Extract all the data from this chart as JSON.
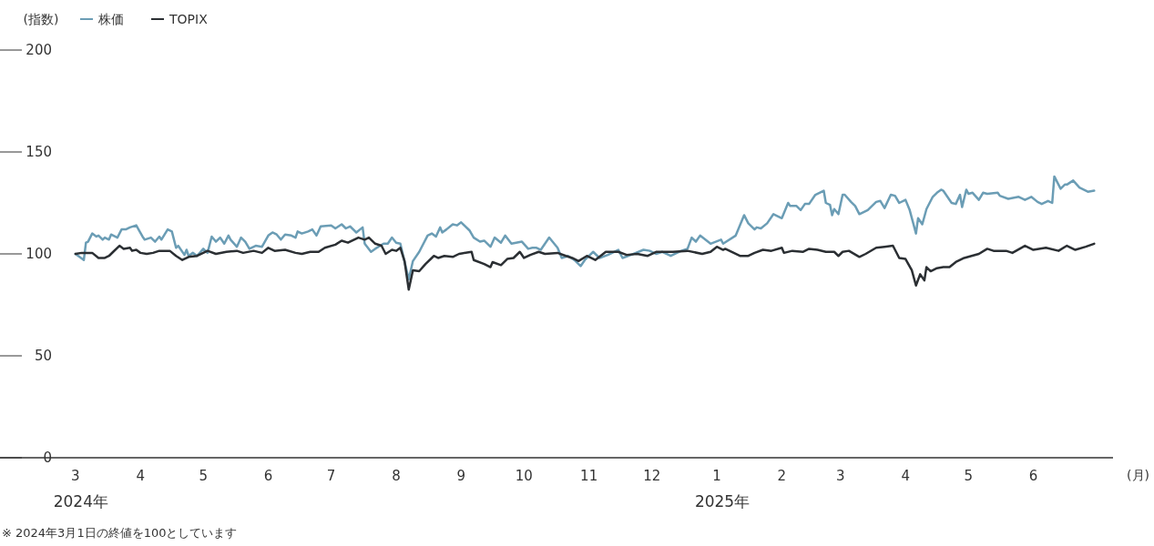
{
  "chart_data": {
    "type": "line",
    "ylabel": "(指数)",
    "xlabel": "(月)",
    "legend": "top left",
    "grid": false,
    "xlim": [
      "2024-01-25",
      "2025-07-09"
    ],
    "ylim": [
      0,
      200
    ],
    "yticks": [
      0,
      50,
      100,
      150,
      200
    ],
    "xticks": [
      {
        "value": "2024-03-01",
        "label": "3"
      },
      {
        "value": "2024-04-01",
        "label": "4"
      },
      {
        "value": "2024-05-01",
        "label": "5"
      },
      {
        "value": "2024-06-01",
        "label": "6"
      },
      {
        "value": "2024-07-01",
        "label": "7"
      },
      {
        "value": "2024-08-01",
        "label": "8"
      },
      {
        "value": "2024-09-01",
        "label": "9"
      },
      {
        "value": "2024-10-01",
        "label": "10"
      },
      {
        "value": "2024-11-01",
        "label": "11"
      },
      {
        "value": "2024-12-01",
        "label": "12"
      },
      {
        "value": "2025-01-01",
        "label": "1"
      },
      {
        "value": "2025-02-01",
        "label": "2"
      },
      {
        "value": "2025-03-01",
        "label": "3"
      },
      {
        "value": "2025-04-01",
        "label": "4"
      },
      {
        "value": "2025-05-01",
        "label": "5"
      },
      {
        "value": "2025-06-01",
        "label": "6"
      }
    ],
    "annotations": [
      "2024年",
      "2025年",
      "※ 2024年3月1日の終値を100としています"
    ],
    "series": [
      {
        "name": "株価",
        "color": "#6b9db5",
        "x": [
          "2024-03-01",
          "2024-03-05",
          "2024-03-06",
          "2024-03-07",
          "2024-03-09",
          "2024-03-11",
          "2024-03-12",
          "2024-03-14",
          "2024-03-15",
          "2024-03-17",
          "2024-03-18",
          "2024-03-21",
          "2024-03-23",
          "2024-03-25",
          "2024-03-27",
          "2024-03-30",
          "2024-04-02",
          "2024-04-03",
          "2024-04-06",
          "2024-04-08",
          "2024-04-10",
          "2024-04-11",
          "2024-04-14",
          "2024-04-16",
          "2024-04-18",
          "2024-04-19",
          "2024-04-22",
          "2024-04-23",
          "2024-04-24",
          "2024-04-26",
          "2024-04-28",
          "2024-05-01",
          "2024-05-03",
          "2024-05-05",
          "2024-05-07",
          "2024-05-09",
          "2024-05-11",
          "2024-05-13",
          "2024-05-14",
          "2024-05-17",
          "2024-05-19",
          "2024-05-21",
          "2024-05-23",
          "2024-05-26",
          "2024-05-29",
          "2024-06-01",
          "2024-06-03",
          "2024-06-05",
          "2024-06-07",
          "2024-06-09",
          "2024-06-12",
          "2024-06-14",
          "2024-06-15",
          "2024-06-17",
          "2024-06-20",
          "2024-06-22",
          "2024-06-24",
          "2024-06-26",
          "2024-07-01",
          "2024-07-03",
          "2024-07-06",
          "2024-07-08",
          "2024-07-10",
          "2024-07-13",
          "2024-07-16",
          "2024-07-17",
          "2024-07-20",
          "2024-07-22",
          "2024-07-26",
          "2024-07-28",
          "2024-07-30",
          "2024-08-01",
          "2024-08-03",
          "2024-08-04",
          "2024-08-07",
          "2024-08-09",
          "2024-08-12",
          "2024-08-16",
          "2024-08-18",
          "2024-08-20",
          "2024-08-22",
          "2024-08-23",
          "2024-08-25",
          "2024-08-28",
          "2024-08-30",
          "2024-09-01",
          "2024-09-05",
          "2024-09-07",
          "2024-09-10",
          "2024-09-12",
          "2024-09-15",
          "2024-09-17",
          "2024-09-20",
          "2024-09-22",
          "2024-09-25",
          "2024-09-30",
          "2024-10-03",
          "2024-10-05",
          "2024-10-07",
          "2024-10-09",
          "2024-10-13",
          "2024-10-17",
          "2024-10-19",
          "2024-10-22",
          "2024-10-25",
          "2024-10-28",
          "2024-10-30",
          "2024-11-03",
          "2024-11-06",
          "2024-11-10",
          "2024-11-15",
          "2024-11-17",
          "2024-11-21",
          "2024-11-27",
          "2024-11-30",
          "2024-12-03",
          "2024-12-06",
          "2024-12-10",
          "2024-12-15",
          "2024-12-18",
          "2024-12-20",
          "2024-12-22",
          "2024-12-24",
          "2024-12-29",
          "2025-01-03",
          "2025-01-04",
          "2025-01-10",
          "2025-01-14",
          "2025-01-16",
          "2025-01-19",
          "2025-01-20",
          "2025-01-22",
          "2025-01-25",
          "2025-01-28",
          "2025-02-01",
          "2025-02-04",
          "2025-02-05",
          "2025-02-08",
          "2025-02-10",
          "2025-02-12",
          "2025-02-14",
          "2025-02-17",
          "2025-02-21",
          "2025-02-22",
          "2025-02-24",
          "2025-02-25",
          "2025-02-26",
          "2025-02-28",
          "2025-03-02",
          "2025-03-03",
          "2025-03-06",
          "2025-03-08",
          "2025-03-10",
          "2025-03-14",
          "2025-03-18",
          "2025-03-20",
          "2025-03-22",
          "2025-03-25",
          "2025-03-27",
          "2025-03-29",
          "2025-04-01",
          "2025-04-03",
          "2025-04-06",
          "2025-04-07",
          "2025-04-09",
          "2025-04-11",
          "2025-04-14",
          "2025-04-16",
          "2025-04-18",
          "2025-04-19",
          "2025-04-23",
          "2025-04-25",
          "2025-04-27",
          "2025-04-28",
          "2025-04-30",
          "2025-05-01",
          "2025-05-03",
          "2025-05-06",
          "2025-05-08",
          "2025-05-10",
          "2025-05-15",
          "2025-05-16",
          "2025-05-20",
          "2025-05-25",
          "2025-05-28",
          "2025-05-31",
          "2025-06-03",
          "2025-06-05",
          "2025-06-08",
          "2025-06-10",
          "2025-06-11",
          "2025-06-14",
          "2025-06-16",
          "2025-06-17",
          "2025-06-20",
          "2025-06-23",
          "2025-06-27",
          "2025-06-30"
        ],
        "values": [
          100,
          97,
          105.5,
          106,
          110,
          108.5,
          109,
          107,
          108,
          107,
          109.5,
          108,
          112,
          112,
          113,
          114,
          108.5,
          107,
          108,
          106,
          108.5,
          107,
          112,
          111,
          103,
          104,
          99.5,
          102,
          99,
          100.5,
          99,
          102.5,
          100.5,
          108.5,
          106,
          108,
          105,
          109,
          107,
          103.5,
          108,
          106,
          102.5,
          104,
          103.5,
          109,
          110.5,
          109.5,
          107,
          109.5,
          109,
          108,
          111,
          110,
          111,
          112,
          109,
          113.5,
          114,
          112.5,
          114.5,
          112.5,
          113.5,
          110.5,
          113,
          105,
          101,
          102.5,
          105,
          105,
          108,
          105.5,
          105,
          100.5,
          87.5,
          96.5,
          101,
          109,
          110,
          108.5,
          113,
          110.5,
          112,
          114.5,
          114,
          115.5,
          111.5,
          108,
          106,
          106.5,
          103.5,
          108,
          105.5,
          109,
          105,
          106,
          102.5,
          103,
          103,
          102,
          108,
          103,
          98,
          99,
          97,
          94,
          97,
          101,
          98,
          99.5,
          102,
          98,
          99.5,
          102,
          101.5,
          100,
          101,
          99,
          101.5,
          102.5,
          108,
          106,
          109,
          105,
          107,
          105,
          109,
          119,
          115,
          112,
          113,
          112.5,
          115,
          119.5,
          117.5,
          125,
          123.5,
          123.5,
          121.5,
          124.5,
          124.5,
          129,
          131,
          125,
          124,
          119,
          122,
          119.5,
          129,
          129,
          125.5,
          123.5,
          119.5,
          121.5,
          125.5,
          126,
          122.5,
          129,
          128.5,
          125,
          126.5,
          121.5,
          110,
          117.5,
          114.5,
          122,
          128,
          130,
          131.5,
          131,
          125,
          124.5,
          129,
          123,
          131.5,
          129.5,
          130,
          126.5,
          130,
          129.5,
          130,
          128.5,
          127,
          128,
          126.5,
          128,
          125.5,
          124.5,
          126,
          125,
          138,
          132,
          134,
          134,
          136,
          132.5,
          130.5,
          131
        ]
      },
      {
        "name": "TOPIX",
        "color": "#2b2f33",
        "x": [
          "2024-03-01",
          "2024-03-04",
          "2024-03-09",
          "2024-03-12",
          "2024-03-15",
          "2024-03-17",
          "2024-03-19",
          "2024-03-22",
          "2024-03-24",
          "2024-03-27",
          "2024-03-28",
          "2024-03-30",
          "2024-04-01",
          "2024-04-04",
          "2024-04-07",
          "2024-04-10",
          "2024-04-15",
          "2024-04-18",
          "2024-04-21",
          "2024-04-24",
          "2024-04-28",
          "2024-05-03",
          "2024-05-07",
          "2024-05-12",
          "2024-05-17",
          "2024-05-20",
          "2024-05-25",
          "2024-05-29",
          "2024-06-01",
          "2024-06-04",
          "2024-06-09",
          "2024-06-14",
          "2024-06-17",
          "2024-06-21",
          "2024-06-25",
          "2024-06-28",
          "2024-07-03",
          "2024-07-06",
          "2024-07-09",
          "2024-07-14",
          "2024-07-17",
          "2024-07-19",
          "2024-07-22",
          "2024-07-25",
          "2024-07-27",
          "2024-07-30",
          "2024-08-01",
          "2024-08-03",
          "2024-08-05",
          "2024-08-07",
          "2024-08-09",
          "2024-08-12",
          "2024-08-15",
          "2024-08-19",
          "2024-08-21",
          "2024-08-24",
          "2024-08-28",
          "2024-08-31",
          "2024-09-06",
          "2024-09-07",
          "2024-09-12",
          "2024-09-15",
          "2024-09-16",
          "2024-09-20",
          "2024-09-23",
          "2024-09-26",
          "2024-09-29",
          "2024-10-01",
          "2024-10-04",
          "2024-10-08",
          "2024-10-11",
          "2024-10-17",
          "2024-10-21",
          "2024-10-24",
          "2024-10-27",
          "2024-10-31",
          "2024-11-04",
          "2024-11-09",
          "2024-11-15",
          "2024-11-19",
          "2024-11-24",
          "2024-11-29",
          "2024-12-03",
          "2024-12-11",
          "2024-12-18",
          "2024-12-25",
          "2024-12-29",
          "2025-01-01",
          "2025-01-04",
          "2025-01-05",
          "2025-01-12",
          "2025-01-16",
          "2025-01-19",
          "2025-01-23",
          "2025-01-27",
          "2025-02-01",
          "2025-02-02",
          "2025-02-06",
          "2025-02-11",
          "2025-02-14",
          "2025-02-18",
          "2025-02-22",
          "2025-02-26",
          "2025-02-28",
          "2025-03-02",
          "2025-03-05",
          "2025-03-10",
          "2025-03-13",
          "2025-03-18",
          "2025-03-22",
          "2025-03-26",
          "2025-03-29",
          "2025-04-01",
          "2025-04-04",
          "2025-04-06",
          "2025-04-08",
          "2025-04-10",
          "2025-04-11",
          "2025-04-13",
          "2025-04-16",
          "2025-04-19",
          "2025-04-22",
          "2025-04-25",
          "2025-04-29",
          "2025-05-06",
          "2025-05-10",
          "2025-05-13",
          "2025-05-19",
          "2025-05-22",
          "2025-05-28",
          "2025-06-01",
          "2025-06-07",
          "2025-06-13",
          "2025-06-17",
          "2025-06-21",
          "2025-06-26",
          "2025-06-30"
        ],
        "values": [
          100,
          100.5,
          100.5,
          98,
          98,
          99,
          101,
          104,
          102.5,
          103,
          101.5,
          102,
          100.5,
          100,
          100.5,
          101.5,
          101.5,
          99,
          97,
          98.5,
          99,
          101.5,
          100,
          101,
          101.5,
          100.5,
          101.5,
          100.5,
          103,
          101.5,
          102,
          100.5,
          100,
          101,
          101,
          103,
          104.5,
          106.5,
          105.5,
          108,
          107,
          108,
          105,
          104,
          100,
          102,
          101.5,
          103,
          96.5,
          82.5,
          92,
          91.5,
          95,
          99,
          98,
          99,
          98.5,
          100,
          101,
          97,
          95,
          93.5,
          96,
          94.5,
          97.5,
          98,
          101,
          98,
          99.5,
          101,
          100,
          100.5,
          99,
          98,
          96.5,
          99,
          97,
          101,
          101,
          99.5,
          100,
          99,
          101,
          101,
          101.5,
          100,
          101,
          103.5,
          102,
          102.5,
          99,
          99,
          100.5,
          102,
          101.5,
          103,
          100.5,
          101.5,
          101,
          102.5,
          102,
          101,
          101,
          99,
          101,
          101.5,
          98.5,
          100,
          103,
          103.5,
          104,
          98,
          97.5,
          92,
          84.5,
          90,
          87,
          93.5,
          91.5,
          93,
          93.5,
          93.5,
          96,
          98,
          100,
          102.5,
          101.5,
          101.5,
          100.5,
          104,
          102,
          103,
          101.5,
          104,
          102,
          103.5,
          105
        ]
      }
    ]
  }
}
